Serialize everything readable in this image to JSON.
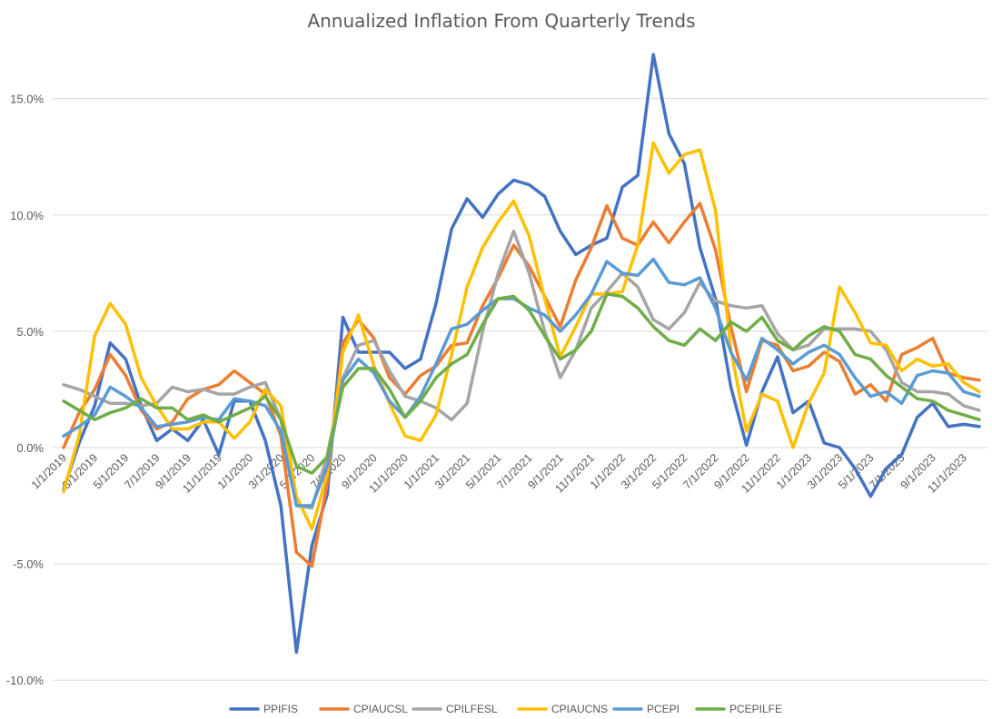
{
  "chart_data": {
    "type": "line",
    "title": "Annualized Inflation From Quarterly Trends",
    "xlabel": "",
    "ylabel": "",
    "ylim": [
      -10,
      17
    ],
    "yticks": [
      -10,
      -5,
      0,
      5,
      10,
      15
    ],
    "ytick_labels": [
      "-10.0%",
      "-5.0%",
      "0.0%",
      "5.0%",
      "10.0%",
      "15.0%"
    ],
    "x": [
      "1/1/2019",
      "2/1/2019",
      "3/1/2019",
      "4/1/2019",
      "5/1/2019",
      "6/1/2019",
      "7/1/2019",
      "8/1/2019",
      "9/1/2019",
      "10/1/2019",
      "11/1/2019",
      "12/1/2019",
      "1/1/2020",
      "2/1/2020",
      "3/1/2020",
      "4/1/2020",
      "5/1/2020",
      "6/1/2020",
      "7/1/2020",
      "8/1/2020",
      "9/1/2020",
      "10/1/2020",
      "11/1/2020",
      "12/1/2020",
      "1/1/2021",
      "2/1/2021",
      "3/1/2021",
      "4/1/2021",
      "5/1/2021",
      "6/1/2021",
      "7/1/2021",
      "8/1/2021",
      "9/1/2021",
      "10/1/2021",
      "11/1/2021",
      "12/1/2021",
      "1/1/2022",
      "2/1/2022",
      "3/1/2022",
      "4/1/2022",
      "5/1/2022",
      "6/1/2022",
      "7/1/2022",
      "8/1/2022",
      "9/1/2022",
      "10/1/2022",
      "11/1/2022",
      "12/1/2022",
      "1/1/2023",
      "2/1/2023",
      "3/1/2023",
      "4/1/2023",
      "5/1/2023",
      "6/1/2023",
      "7/1/2023",
      "8/1/2023",
      "9/1/2023",
      "10/1/2023",
      "11/1/2023",
      "12/1/2023"
    ],
    "xtick_labels": [
      "1/1/2019",
      "3/1/2019",
      "5/1/2019",
      "7/1/2019",
      "9/1/2019",
      "11/1/2019",
      "1/1/2020",
      "3/1/2020",
      "5/1/2020",
      "7/1/2020",
      "9/1/2020",
      "11/1/2020",
      "1/1/2021",
      "3/1/2021",
      "5/1/2021",
      "7/1/2021",
      "9/1/2021",
      "11/1/2021",
      "1/1/2022",
      "3/1/2022",
      "5/1/2022",
      "7/1/2022",
      "9/1/2022",
      "11/1/2022",
      "1/1/2023",
      "3/1/2023",
      "5/1/2023",
      "7/1/2023",
      "9/1/2023",
      "11/1/2023"
    ],
    "legend_position": "bottom",
    "series": [
      {
        "name": "PPIFIS",
        "color": "#4472C4",
        "values": [
          -1.8,
          0.2,
          1.8,
          4.5,
          3.8,
          1.8,
          0.3,
          0.8,
          0.3,
          1.2,
          -0.3,
          2.0,
          2.0,
          0.3,
          -2.5,
          -8.8,
          -4.2,
          -2.0,
          5.6,
          4.1,
          4.1,
          4.1,
          3.4,
          3.8,
          6.2,
          9.4,
          10.7,
          9.9,
          10.9,
          11.5,
          11.3,
          10.8,
          9.3,
          8.3,
          8.7,
          9.0,
          11.2,
          11.7,
          16.9,
          13.5,
          12.2,
          8.6,
          6.4,
          2.6,
          0.1,
          2.4,
          3.9,
          1.5,
          2.0,
          0.2,
          0.0,
          -0.9,
          -2.1,
          -0.9,
          -0.3,
          1.3,
          1.9,
          0.9,
          1.0,
          0.9
        ]
      },
      {
        "name": "CPIAUCSL",
        "color": "#ED7D31",
        "values": [
          0.0,
          1.5,
          2.5,
          4.0,
          3.1,
          1.6,
          0.8,
          1.1,
          2.1,
          2.5,
          2.7,
          3.3,
          2.8,
          2.3,
          0.5,
          -4.5,
          -5.1,
          -1.5,
          4.5,
          5.5,
          4.7,
          3.0,
          2.3,
          3.1,
          3.5,
          4.4,
          4.5,
          6.1,
          7.3,
          8.7,
          7.8,
          6.5,
          5.2,
          7.2,
          8.6,
          10.4,
          9.0,
          8.7,
          9.7,
          8.8,
          9.7,
          10.5,
          8.5,
          5.2,
          2.4,
          4.6,
          4.4,
          3.3,
          3.5,
          4.1,
          3.7,
          2.3,
          2.7,
          2.0,
          4.0,
          4.3,
          4.7,
          3.2,
          3.0,
          2.9
        ]
      },
      {
        "name": "CPILFESL",
        "color": "#A5A5A5",
        "values": [
          2.7,
          2.5,
          2.2,
          1.9,
          1.9,
          1.8,
          1.9,
          2.6,
          2.4,
          2.5,
          2.3,
          2.3,
          2.6,
          2.8,
          1.2,
          -2.5,
          -2.6,
          -0.3,
          3.0,
          4.4,
          4.6,
          3.3,
          2.2,
          2.0,
          1.7,
          1.2,
          1.9,
          5.0,
          7.5,
          9.3,
          7.5,
          5.0,
          3.0,
          4.2,
          6.0,
          6.7,
          7.5,
          6.9,
          5.5,
          5.1,
          5.8,
          7.1,
          6.3,
          6.1,
          6.0,
          6.1,
          4.9,
          4.2,
          4.4,
          5.1,
          5.1,
          5.1,
          5.0,
          4.2,
          2.8,
          2.4,
          2.4,
          2.3,
          1.8,
          1.6
        ]
      },
      {
        "name": "CPIAUCNS",
        "color": "#FFC000",
        "values": [
          -1.9,
          0.5,
          4.8,
          6.2,
          5.3,
          3.0,
          1.8,
          0.8,
          0.8,
          1.1,
          1.1,
          0.4,
          1.1,
          2.5,
          1.8,
          -2.1,
          -3.5,
          -1.1,
          4.1,
          5.7,
          3.5,
          1.9,
          0.5,
          0.3,
          1.4,
          4.0,
          6.9,
          8.6,
          9.7,
          10.6,
          9.1,
          6.4,
          3.9,
          5.2,
          6.6,
          6.6,
          6.7,
          8.7,
          13.1,
          11.8,
          12.6,
          12.8,
          10.2,
          4.2,
          0.7,
          2.3,
          2.0,
          0.0,
          1.9,
          3.2,
          6.9,
          5.8,
          4.5,
          4.4,
          3.3,
          3.8,
          3.5,
          3.6,
          2.8,
          2.4
        ]
      },
      {
        "name": "PCEPI",
        "color": "#5B9BD5",
        "values": [
          0.5,
          0.9,
          1.4,
          2.6,
          2.2,
          1.7,
          0.9,
          1.0,
          1.1,
          1.3,
          1.2,
          2.1,
          2.0,
          1.8,
          0.7,
          -2.5,
          -2.5,
          -0.8,
          2.9,
          3.8,
          3.2,
          2.0,
          1.3,
          2.2,
          3.6,
          5.1,
          5.3,
          5.9,
          6.4,
          6.4,
          6.0,
          5.7,
          5.0,
          5.7,
          6.6,
          8.0,
          7.5,
          7.4,
          8.1,
          7.1,
          7.0,
          7.3,
          6.0,
          4.1,
          2.9,
          4.7,
          4.2,
          3.6,
          4.1,
          4.4,
          4.0,
          3.0,
          2.2,
          2.4,
          1.9,
          3.1,
          3.3,
          3.2,
          2.4,
          2.2
        ]
      },
      {
        "name": "PCEPILFE",
        "color": "#70AD47",
        "values": [
          2.0,
          1.6,
          1.2,
          1.5,
          1.7,
          2.1,
          1.7,
          1.7,
          1.2,
          1.4,
          1.1,
          1.4,
          1.7,
          2.2,
          1.2,
          -0.8,
          -1.1,
          -0.4,
          2.6,
          3.4,
          3.4,
          2.5,
          1.3,
          2.0,
          3.0,
          3.6,
          4.0,
          5.3,
          6.4,
          6.5,
          5.9,
          4.8,
          3.8,
          4.2,
          5.0,
          6.6,
          6.5,
          6.0,
          5.2,
          4.6,
          4.4,
          5.1,
          4.6,
          5.4,
          5.0,
          5.6,
          4.6,
          4.2,
          4.8,
          5.2,
          5.0,
          4.0,
          3.8,
          3.1,
          2.6,
          2.1,
          2.0,
          1.6,
          1.4,
          1.2
        ]
      }
    ]
  }
}
